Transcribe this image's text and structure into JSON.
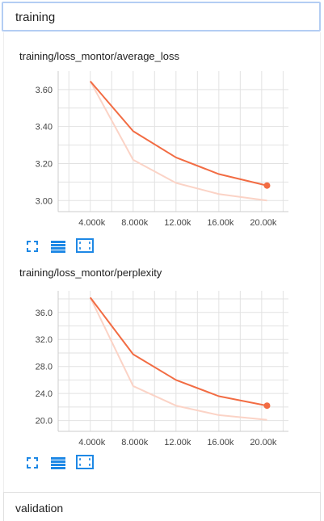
{
  "groups": {
    "training_label": "training",
    "validation_label": "validation"
  },
  "colors": {
    "line": "#f26c43",
    "line_smoothed_raw": "#fbd3c6",
    "toolbar_icon": "#1e88e5",
    "grid": "#e2e2e2"
  },
  "toolbar_icons": [
    "fit-domain-icon",
    "toggle-data-table-icon",
    "expand-chart-icon"
  ],
  "chart_data": [
    {
      "type": "line",
      "title": "training/loss_montor/average_loss",
      "x_ticks": [
        "4.000k",
        "8.000k",
        "12.00k",
        "16.00k",
        "20.00k"
      ],
      "y_ticks": [
        "3.00",
        "3.20",
        "3.40",
        "3.60"
      ],
      "xlim": [
        1000,
        22500
      ],
      "ylim": [
        2.94,
        3.7
      ],
      "series": [
        {
          "role": "smoothed",
          "x": [
            4000,
            8000,
            12000,
            16000,
            20500
          ],
          "y": [
            3.645,
            3.375,
            3.233,
            3.143,
            3.081
          ]
        },
        {
          "role": "raw",
          "x": [
            4000,
            8000,
            12000,
            16000,
            20500
          ],
          "y": [
            3.645,
            3.22,
            3.095,
            3.035,
            3.0
          ]
        }
      ],
      "grid": true
    },
    {
      "type": "line",
      "title": "training/loss_montor/perplexity",
      "x_ticks": [
        "4.000k",
        "8.000k",
        "12.00k",
        "16.00k",
        "20.00k"
      ],
      "y_ticks": [
        "20.0",
        "24.0",
        "28.0",
        "32.0",
        "36.0"
      ],
      "xlim": [
        1000,
        22500
      ],
      "ylim": [
        18.4,
        39.2
      ],
      "series": [
        {
          "role": "smoothed",
          "x": [
            4000,
            8000,
            12000,
            16000,
            20500
          ],
          "y": [
            38.2,
            29.8,
            26.0,
            23.6,
            22.2
          ]
        },
        {
          "role": "raw",
          "x": [
            4000,
            8000,
            12000,
            16000,
            20500
          ],
          "y": [
            38.2,
            25.1,
            22.2,
            20.8,
            20.1
          ]
        }
      ],
      "grid": true
    }
  ]
}
